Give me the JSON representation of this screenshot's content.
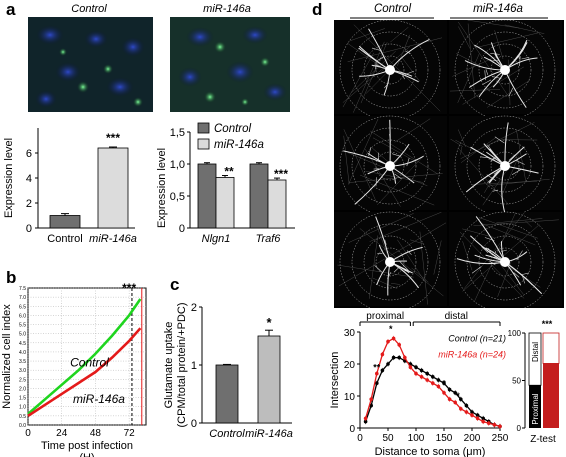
{
  "panels": {
    "a": {
      "label": "a",
      "image_headers": [
        "Control",
        "miR-146a"
      ],
      "chart1": {
        "type": "bar",
        "categories": [
          "Control",
          "miR-146a"
        ],
        "values": [
          1.0,
          6.4
        ],
        "errors": [
          0.15,
          0.08
        ],
        "ylabel": "Expression level",
        "ylim": [
          0,
          8
        ],
        "yticks": [
          "0",
          "2",
          "4",
          "6"
        ],
        "significance": "***",
        "colors": [
          "#6f6f6f",
          "#dcdcdc"
        ]
      },
      "chart2": {
        "type": "bar",
        "categories": [
          "Nlgn1",
          "Traf6"
        ],
        "series": [
          {
            "name": "Control",
            "values": [
              1.0,
              1.0
            ],
            "errors": [
              0.02,
              0.02
            ],
            "color": "#6f6f6f"
          },
          {
            "name": "miR-146a",
            "values": [
              0.79,
              0.75
            ],
            "errors": [
              0.03,
              0.03
            ],
            "color": "#dcdcdc"
          }
        ],
        "ylabel": "Expression level",
        "ylim": [
          0,
          1.5
        ],
        "yticks": [
          "0",
          "0,5",
          "1,0",
          "1,5"
        ],
        "significance": [
          "**",
          "***"
        ]
      }
    },
    "b": {
      "label": "b",
      "type": "line",
      "ylabel": "Normalized cell index",
      "xlabel": "Time post infection",
      "xunit": "(H)",
      "xticks": [
        "0",
        "24",
        "48",
        "72"
      ],
      "yticks": [
        "0.0",
        "0.5",
        "1.0",
        "1.5",
        "2.0",
        "2.5",
        "3.0",
        "3.5",
        "4.0",
        "4.5",
        "5.0",
        "5.5",
        "6.0",
        "6.5",
        "7.0",
        "7.5"
      ],
      "xlim": [
        0,
        84
      ],
      "ylim": [
        0,
        7.5
      ],
      "series": [
        {
          "name": "Control",
          "color": "#1fd51f",
          "x": [
            0,
            12,
            24,
            36,
            48,
            60,
            72,
            80
          ],
          "y": [
            0.6,
            1.4,
            2.2,
            3.0,
            3.9,
            4.9,
            6.0,
            6.9
          ]
        },
        {
          "name": "miR-146a",
          "color": "#e41a1a",
          "x": [
            0,
            12,
            24,
            36,
            48,
            60,
            72,
            80
          ],
          "y": [
            0.5,
            1.1,
            1.7,
            2.3,
            2.9,
            3.7,
            4.6,
            5.3
          ]
        }
      ],
      "significance": "***"
    },
    "c": {
      "label": "c",
      "type": "bar",
      "categories": [
        "Control",
        "miR-146a"
      ],
      "values": [
        1.0,
        1.5
      ],
      "errors": [
        0.01,
        0.1
      ],
      "ylabel": "Glutamate uptake",
      "ylabel2": "(CPM/total protein/+PDC)",
      "ylim": [
        0,
        2
      ],
      "yticks": [
        "0",
        "1",
        "2"
      ],
      "significance": "*",
      "colors": [
        "#6f6f6f",
        "#bdbdbd"
      ]
    },
    "d": {
      "label": "d",
      "image_headers": [
        "Control",
        "miR-146a"
      ],
      "sholl": {
        "type": "line",
        "xlabel": "Distance to soma (μm)",
        "ylabel": "Intersection",
        "xticks": [
          "0",
          "50",
          "100",
          "150",
          "200",
          "250"
        ],
        "yticks": [
          "0",
          "10",
          "20",
          "30"
        ],
        "xlim": [
          0,
          250
        ],
        "ylim": [
          0,
          30
        ],
        "region_labels": [
          "proximal",
          "distal"
        ],
        "series": [
          {
            "name": "Control",
            "legend": "Control (n=21)",
            "color": "#000000",
            "x": [
              10,
              20,
              30,
              40,
              50,
              60,
              70,
              80,
              90,
              100,
              110,
              120,
              130,
              140,
              150,
              160,
              170,
              180,
              190,
              200,
              210,
              220,
              230,
              240,
              250
            ],
            "y": [
              2,
              7,
              14,
              18,
              20,
              22,
              22,
              21,
              20,
              19,
              18,
              17,
              16,
              15,
              14,
              12,
              11,
              9,
              7,
              5,
              4,
              3,
              2,
              1,
              0.5
            ]
          },
          {
            "name": "miR-146a",
            "legend": "miR-146a (n=24)",
            "color": "#e41a1a",
            "x": [
              10,
              20,
              30,
              40,
              50,
              60,
              70,
              80,
              90,
              100,
              110,
              120,
              130,
              140,
              150,
              160,
              170,
              180,
              190,
              200,
              210,
              220,
              230,
              240,
              250
            ],
            "y": [
              3,
              9,
              17,
              23,
              27,
              28,
              26,
              22,
              19,
              17,
              16,
              15,
              14,
              13,
              11,
              9,
              8,
              6,
              5,
              4,
              3,
              2,
              1.5,
              1,
              0.5
            ]
          }
        ],
        "significance": [
          "**",
          "*",
          "*",
          "*"
        ]
      },
      "ztest": {
        "type": "bar",
        "labels": [
          "Distal",
          "Proximal"
        ],
        "yticks": [
          "0",
          "50",
          "100"
        ],
        "ylim": [
          0,
          100
        ],
        "control": {
          "proximal": 45,
          "distal": 55
        },
        "mir146a": {
          "proximal": 68,
          "distal": 32
        },
        "significance": "***",
        "xlabel": "Z-test"
      }
    }
  }
}
